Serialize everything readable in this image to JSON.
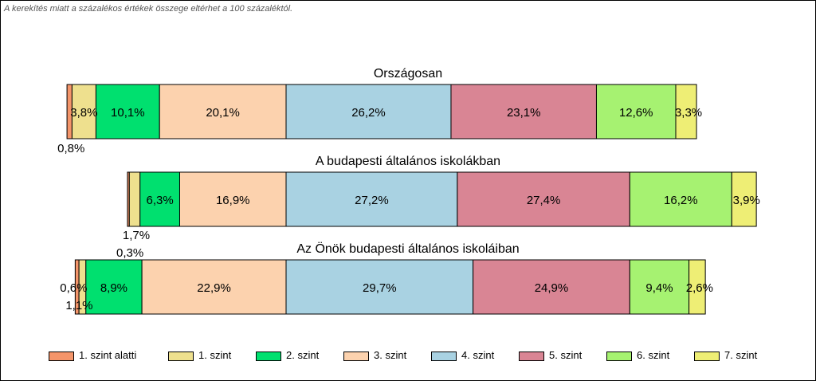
{
  "note": "A kerekítés miatt a  százalékos értékek összege eltérhet a 100 százaléktól.",
  "chart_data": {
    "type": "bar",
    "orientation": "horizontal",
    "stacked": true,
    "series_names": [
      "1. szint alatti",
      "1. szint",
      "2. szint",
      "3. szint",
      "4. szint",
      "5. szint",
      "6. szint",
      "7. szint"
    ],
    "colors": [
      "#f4956a",
      "#eee08e",
      "#00e06f",
      "#fcd2ae",
      "#a9d2e2",
      "#d98594",
      "#a6f271",
      "#eeee75"
    ],
    "centered_on": "3. szint / 4. szint boundary",
    "legend_position": "bottom",
    "grid": false,
    "groups": [
      {
        "title": "Országosan",
        "values": [
          0.8,
          3.8,
          10.1,
          20.1,
          26.2,
          23.1,
          12.6,
          3.3
        ],
        "labels": [
          "0,8%",
          "3,8%",
          "10,1%",
          "20,1%",
          "26,2%",
          "23,1%",
          "12,6%",
          "3,3%"
        ]
      },
      {
        "title": "A budapesti általános iskolákban",
        "values": [
          0.3,
          1.7,
          6.3,
          16.9,
          27.2,
          27.4,
          16.2,
          3.9
        ],
        "labels": [
          "0,3%",
          "1,7%",
          "6,3%",
          "16,9%",
          "27,2%",
          "27,4%",
          "16,2%",
          "3,9%"
        ]
      },
      {
        "title": "Az Önök budapesti általános iskoláiban",
        "values": [
          0.6,
          1.1,
          8.9,
          22.9,
          29.7,
          24.9,
          9.4,
          2.6
        ],
        "labels": [
          "0,6%",
          "1,1%",
          "8,9%",
          "22,9%",
          "29,7%",
          "24,9%",
          "9,4%",
          "2,6%"
        ]
      }
    ]
  }
}
